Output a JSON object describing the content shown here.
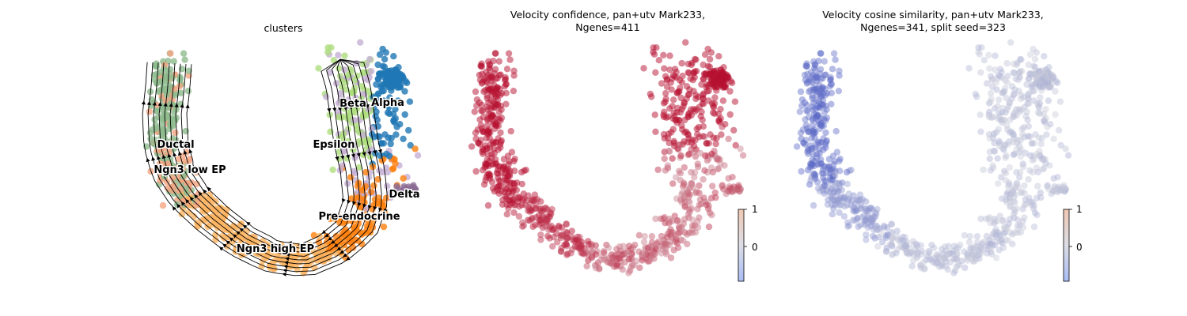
{
  "chart_data": [
    {
      "type": "scatter",
      "subtype": "velocity-stream-embedding",
      "title": "clusters",
      "grid": false,
      "axes": "hidden",
      "legend": "on data",
      "clusters": [
        {
          "name": "Ductal",
          "color": "#8fbc8f"
        },
        {
          "name": "Ngn3 low EP",
          "color": "#f4a582"
        },
        {
          "name": "Ngn3 high EP",
          "color": "#fdb462"
        },
        {
          "name": "Pre-endocrine",
          "color": "#ff7f0e"
        },
        {
          "name": "Beta",
          "color": "#aedd7e"
        },
        {
          "name": "Alpha",
          "color": "#1f77b4"
        },
        {
          "name": "Delta",
          "color": "#8c6d94"
        },
        {
          "name": "Epsilon",
          "color": "#c5b0d5"
        }
      ]
    },
    {
      "type": "scatter",
      "title_lines": [
        "Velocity confidence, pan+utv Mark233,",
        "Ngenes=411"
      ],
      "colormap": "coolwarm",
      "colorbar": {
        "ticks": [
          "1",
          "0"
        ]
      },
      "grid": false,
      "axes": "hidden"
    },
    {
      "type": "scatter",
      "title_lines": [
        "Velocity cosine similarity, pan+utv Mark233,",
        "Ngenes=341, split seed=323"
      ],
      "colormap": "coolwarm",
      "colorbar": {
        "ticks": [
          "1",
          "0"
        ]
      },
      "grid": false,
      "axes": "hidden"
    }
  ]
}
